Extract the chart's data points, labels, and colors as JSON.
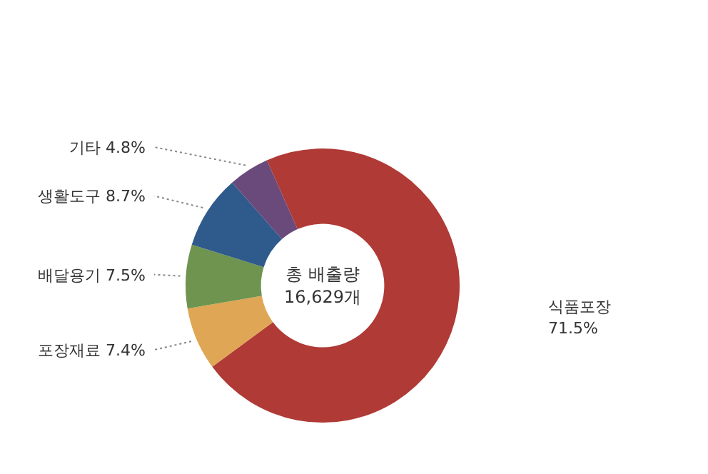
{
  "chart_data": {
    "type": "donut",
    "categories": [
      "식품포장",
      "포장재료",
      "배달용기",
      "생활도구",
      "기타"
    ],
    "values": [
      71.5,
      7.4,
      7.5,
      8.7,
      4.8
    ],
    "colors": [
      "#b03a35",
      "#dfa655",
      "#6e944f",
      "#2f5a8c",
      "#6a4a7b"
    ],
    "value_labels": [
      "71.5%",
      "7.4%",
      "7.5%",
      "8.7%",
      "4.8%"
    ],
    "annotations": [
      "총 배출량\n16,629개"
    ]
  }
}
